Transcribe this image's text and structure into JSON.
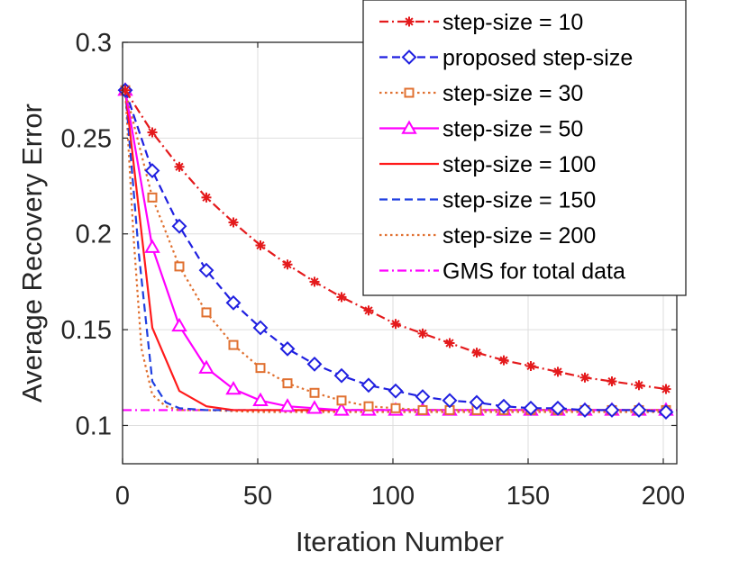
{
  "chart_data": {
    "type": "line",
    "title": "",
    "xlabel": "Iteration Number",
    "ylabel": "Average Recovery Error",
    "xlim": [
      0,
      205
    ],
    "ylim": [
      0.08,
      0.3
    ],
    "xticks": [
      0,
      50,
      100,
      150,
      200
    ],
    "yticks": [
      0.1,
      0.15,
      0.2,
      0.25,
      0.3
    ],
    "xtick_labels": [
      "0",
      "50",
      "100",
      "150",
      "200"
    ],
    "ytick_labels": [
      "0.1",
      "0.15",
      "0.2",
      "0.25",
      "0.3"
    ],
    "grid": true,
    "legend_position": "top-right",
    "series": [
      {
        "name": "step-size = 10",
        "color": "#e41a1c",
        "dash": "dashdot",
        "marker": "asterisk",
        "x": [
          1,
          11,
          21,
          31,
          41,
          51,
          61,
          71,
          81,
          91,
          101,
          111,
          121,
          131,
          141,
          151,
          161,
          171,
          181,
          191,
          201
        ],
        "y": [
          0.275,
          0.253,
          0.235,
          0.219,
          0.206,
          0.194,
          0.184,
          0.175,
          0.167,
          0.16,
          0.153,
          0.148,
          0.143,
          0.138,
          0.134,
          0.131,
          0.128,
          0.125,
          0.123,
          0.121,
          0.119
        ]
      },
      {
        "name": "proposed step-size",
        "color": "#1f1fe0",
        "dash": "dashed",
        "marker": "diamond",
        "x": [
          1,
          11,
          21,
          31,
          41,
          51,
          61,
          71,
          81,
          91,
          101,
          111,
          121,
          131,
          141,
          151,
          161,
          171,
          181,
          191,
          201
        ],
        "y": [
          0.275,
          0.233,
          0.204,
          0.181,
          0.164,
          0.151,
          0.14,
          0.132,
          0.126,
          0.121,
          0.118,
          0.115,
          0.113,
          0.112,
          0.11,
          0.109,
          0.109,
          0.108,
          0.108,
          0.108,
          0.107
        ]
      },
      {
        "name": "step-size = 30",
        "color": "#e07030",
        "dash": "dotted",
        "marker": "square",
        "x": [
          1,
          11,
          21,
          31,
          41,
          51,
          61,
          71,
          81,
          91,
          101,
          111,
          121,
          131,
          141,
          151,
          161,
          171,
          181,
          191,
          201
        ],
        "y": [
          0.275,
          0.219,
          0.183,
          0.159,
          0.142,
          0.13,
          0.122,
          0.117,
          0.113,
          0.11,
          0.109,
          0.108,
          0.108,
          0.108,
          0.108,
          0.108,
          0.108,
          0.108,
          0.108,
          0.108,
          0.108
        ]
      },
      {
        "name": "step-size = 50",
        "color": "#ff00ff",
        "dash": "solid",
        "marker": "triangle",
        "x": [
          1,
          11,
          21,
          31,
          41,
          51,
          61,
          71,
          81,
          91,
          101,
          111,
          121,
          131,
          141,
          151,
          161,
          171,
          181,
          191,
          201
        ],
        "y": [
          0.275,
          0.193,
          0.152,
          0.13,
          0.119,
          0.113,
          0.11,
          0.109,
          0.108,
          0.108,
          0.108,
          0.108,
          0.108,
          0.108,
          0.108,
          0.108,
          0.108,
          0.108,
          0.108,
          0.108,
          0.108
        ]
      },
      {
        "name": "step-size = 100",
        "color": "#ff1a1a",
        "dash": "solid",
        "marker": "none",
        "x": [
          1,
          11,
          21,
          31,
          41,
          51,
          71,
          101,
          151,
          201
        ],
        "y": [
          0.275,
          0.151,
          0.118,
          0.11,
          0.108,
          0.108,
          0.108,
          0.108,
          0.108,
          0.108
        ]
      },
      {
        "name": "step-size = 150",
        "color": "#1f3fe0",
        "dash": "dashed",
        "marker": "none",
        "x": [
          1,
          6,
          11,
          16,
          21,
          31,
          51,
          101,
          151,
          201
        ],
        "y": [
          0.275,
          0.19,
          0.123,
          0.112,
          0.109,
          0.108,
          0.108,
          0.108,
          0.108,
          0.108
        ]
      },
      {
        "name": "step-size = 200",
        "color": "#e07030",
        "dash": "dotted",
        "marker": "none",
        "x": [
          1,
          4,
          7,
          11,
          16,
          21,
          31,
          51,
          101,
          151,
          201
        ],
        "y": [
          0.275,
          0.2,
          0.14,
          0.116,
          0.11,
          0.108,
          0.108,
          0.107,
          0.107,
          0.107,
          0.107
        ]
      },
      {
        "name": "GMS for total data",
        "color": "#ff00ff",
        "dash": "dashdot",
        "marker": "none",
        "x": [
          0,
          205
        ],
        "y": [
          0.108,
          0.108
        ]
      }
    ]
  }
}
